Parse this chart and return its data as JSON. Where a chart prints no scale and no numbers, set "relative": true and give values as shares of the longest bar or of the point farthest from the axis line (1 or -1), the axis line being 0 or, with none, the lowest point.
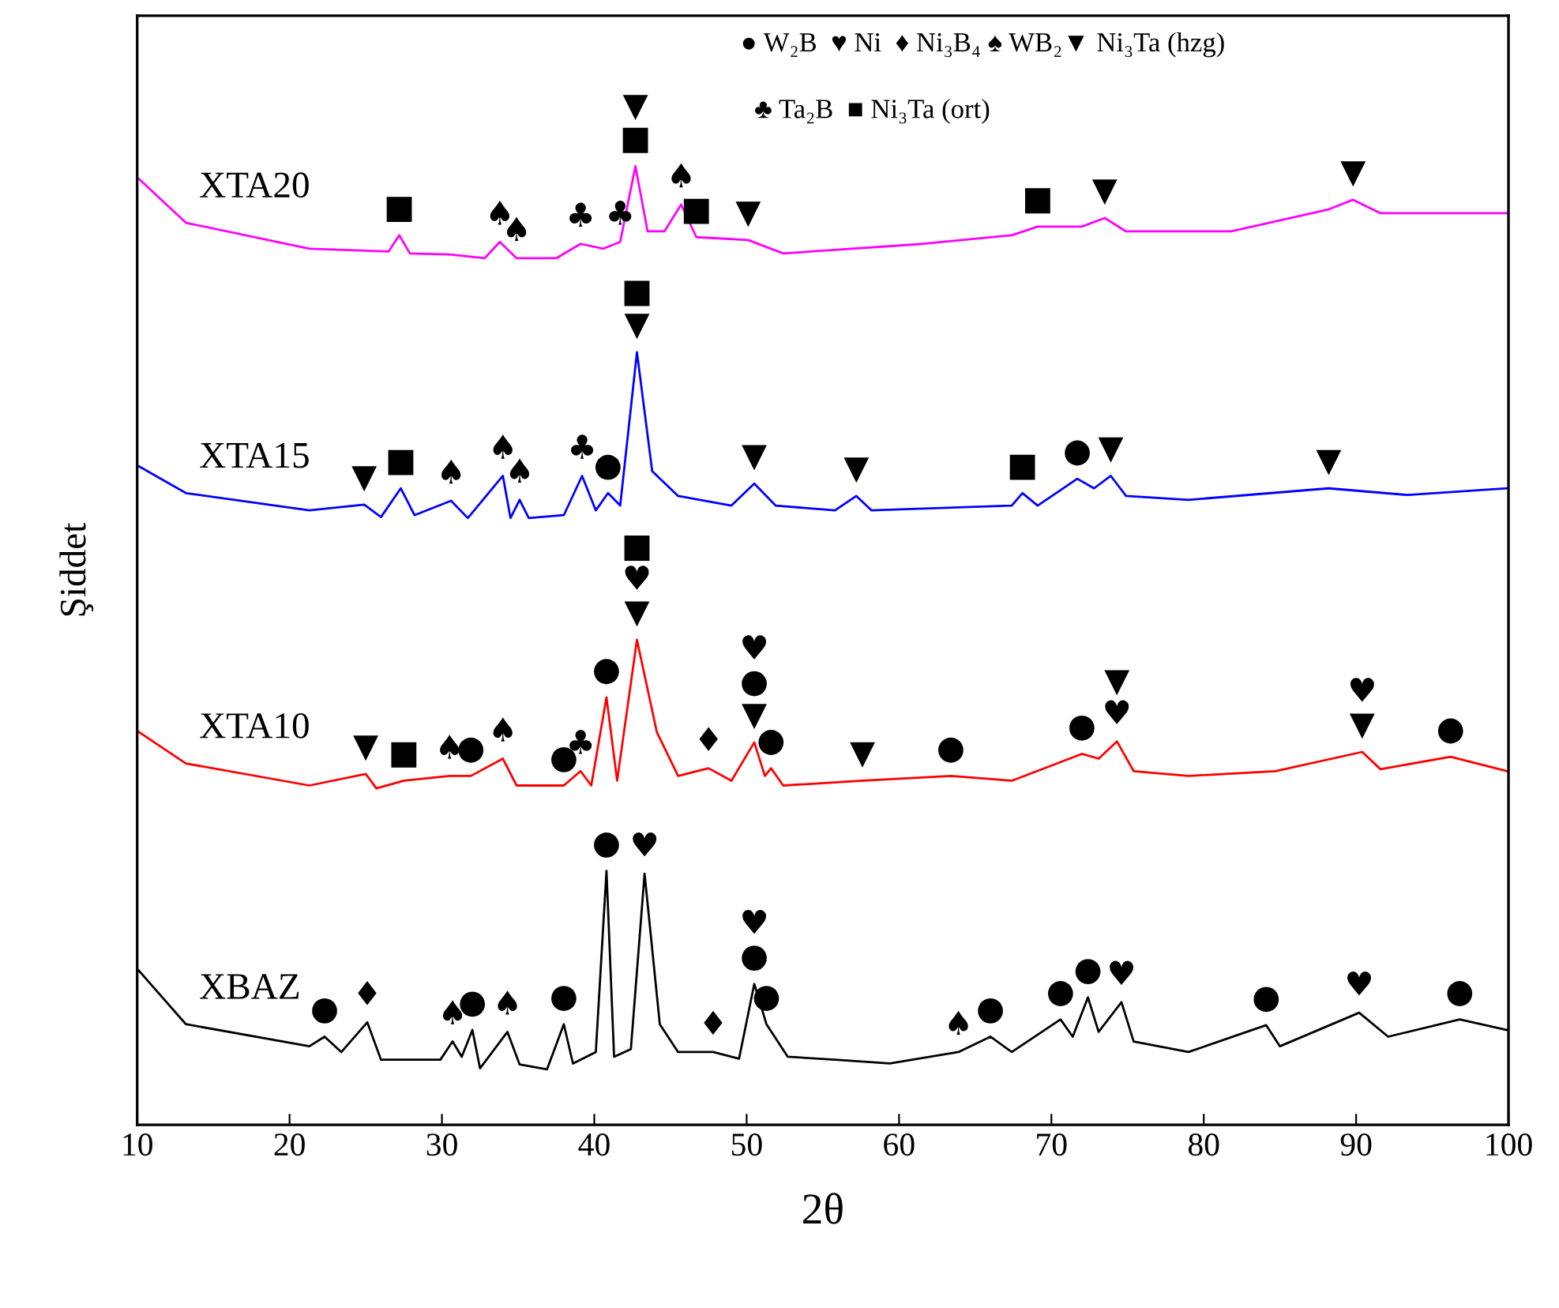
{
  "chart_data": {
    "type": "line",
    "relative": true,
    "xlabel": "2θ",
    "ylabel": "Şiddet",
    "xlim": [
      10,
      100
    ],
    "xticks": [
      10,
      20,
      30,
      40,
      50,
      60,
      70,
      80,
      90,
      100
    ],
    "grid": false,
    "tick_labels": "x",
    "marker": "none",
    "line_style": "solid",
    "series": [
      {
        "name": "XTA20",
        "color": "#ff00ff",
        "x": [
          10.1,
          13.2,
          21.3,
          26.5,
          27.2,
          27.9,
          30.5,
          32.8,
          33.8,
          34.9,
          37.5,
          39.1,
          40.6,
          41.7,
          42.7,
          43.5,
          44.6,
          45.7,
          46.7,
          50.1,
          52.4,
          61.6,
          67.4,
          69.1,
          72.0,
          73.5,
          74.9,
          81.8,
          88.2,
          89.8,
          91.6,
          99.9
        ],
        "values": [
          0.987,
          0.941,
          0.914,
          0.911,
          0.928,
          0.909,
          0.908,
          0.904,
          0.921,
          0.904,
          0.904,
          0.919,
          0.914,
          0.921,
          1.0,
          0.932,
          0.932,
          0.96,
          0.926,
          0.923,
          0.909,
          0.919,
          0.928,
          0.937,
          0.937,
          0.946,
          0.932,
          0.932,
          0.955,
          0.965,
          0.951,
          0.951
        ]
      },
      {
        "name": "XTA15",
        "color": "#0000ff",
        "x": [
          10.1,
          13.2,
          21.3,
          24.9,
          26.0,
          27.3,
          28.2,
          30.6,
          31.7,
          34.0,
          34.5,
          35.1,
          35.7,
          38.0,
          39.2,
          40.1,
          40.9,
          41.7,
          42.8,
          43.8,
          45.5,
          49.0,
          50.5,
          51.9,
          55.8,
          57.2,
          58.2,
          67.4,
          68.1,
          69.1,
          71.7,
          72.8,
          73.9,
          74.9,
          79.0,
          88.2,
          93.4,
          99.9
        ],
        "values": [
          0.687,
          0.659,
          0.641,
          0.647,
          0.634,
          0.664,
          0.636,
          0.651,
          0.633,
          0.677,
          0.633,
          0.652,
          0.633,
          0.636,
          0.677,
          0.641,
          0.659,
          0.646,
          0.806,
          0.682,
          0.656,
          0.646,
          0.669,
          0.646,
          0.641,
          0.656,
          0.641,
          0.646,
          0.659,
          0.646,
          0.674,
          0.664,
          0.677,
          0.656,
          0.652,
          0.664,
          0.657,
          0.664
        ]
      },
      {
        "name": "XTA10",
        "color": "#ff0000",
        "x": [
          10.1,
          13.2,
          21.3,
          25.0,
          25.7,
          27.5,
          30.5,
          31.9,
          34.0,
          34.9,
          38.0,
          39.1,
          39.8,
          40.8,
          41.5,
          42.8,
          44.1,
          45.5,
          47.5,
          49.0,
          50.5,
          51.2,
          51.6,
          52.4,
          57.6,
          63.4,
          67.4,
          72.0,
          73.1,
          74.3,
          75.4,
          79.0,
          84.7,
          90.4,
          91.6,
          96.2,
          99.9
        ],
        "values": [
          0.41,
          0.377,
          0.354,
          0.366,
          0.351,
          0.359,
          0.364,
          0.364,
          0.382,
          0.354,
          0.354,
          0.369,
          0.354,
          0.446,
          0.359,
          0.506,
          0.41,
          0.364,
          0.372,
          0.359,
          0.399,
          0.364,
          0.372,
          0.354,
          0.359,
          0.364,
          0.359,
          0.387,
          0.382,
          0.4,
          0.369,
          0.364,
          0.369,
          0.389,
          0.371,
          0.384,
          0.369
        ]
      },
      {
        "name": "XBAZ",
        "color": "#000000",
        "x": [
          10.1,
          13.2,
          21.3,
          22.3,
          23.4,
          25.1,
          26.0,
          29.9,
          30.7,
          31.3,
          32.0,
          32.5,
          34.3,
          35.1,
          36.9,
          38.0,
          38.6,
          40.1,
          40.8,
          41.3,
          42.4,
          43.3,
          44.3,
          45.5,
          47.8,
          49.5,
          50.5,
          51.3,
          52.7,
          55.8,
          59.4,
          63.9,
          66.0,
          67.4,
          70.6,
          71.4,
          72.4,
          73.1,
          74.6,
          75.4,
          79.0,
          84.1,
          85.0,
          90.2,
          92.1,
          96.8,
          99.9
        ],
        "values": [
          0.161,
          0.105,
          0.082,
          0.092,
          0.076,
          0.107,
          0.068,
          0.068,
          0.087,
          0.071,
          0.099,
          0.059,
          0.097,
          0.063,
          0.058,
          0.105,
          0.064,
          0.076,
          0.265,
          0.071,
          0.079,
          0.262,
          0.105,
          0.076,
          0.076,
          0.069,
          0.147,
          0.105,
          0.071,
          0.068,
          0.064,
          0.076,
          0.092,
          0.076,
          0.11,
          0.092,
          0.133,
          0.097,
          0.128,
          0.087,
          0.076,
          0.104,
          0.082,
          0.117,
          0.092,
          0.11,
          0.099
        ]
      }
    ],
    "annotations": [
      "● W₂B  ♥ Ni  ♦ Ni₃B₄ ♠ WB₂▼ Ni₃Ta (hzg)",
      "♣ Ta₂B  ■ Ni₃Ta (ort)",
      {
        "text": "■",
        "x": 27.2,
        "y": 0.928
      },
      {
        "text": "♠",
        "x": 33.8,
        "y": 0.921
      },
      {
        "text": "♠",
        "x": 34.9,
        "y": 0.904
      },
      {
        "text": "♣",
        "x": 39.1,
        "y": 0.919
      },
      {
        "text": "♣",
        "x": 41.7,
        "y": 0.921
      },
      {
        "text": "■",
        "x": 42.7,
        "y": 1.0
      },
      {
        "text": "▼",
        "x": 42.7,
        "y": 1.0
      },
      {
        "text": "♠",
        "x": 45.7,
        "y": 0.96
      },
      {
        "text": "■",
        "x": 46.7,
        "y": 0.926
      },
      {
        "text": "▼",
        "x": 50.1,
        "y": 0.923
      },
      {
        "text": "■",
        "x": 69.1,
        "y": 0.937
      },
      {
        "text": "▼",
        "x": 73.5,
        "y": 0.946
      },
      {
        "text": "▼",
        "x": 89.8,
        "y": 0.965
      },
      {
        "text": "▼",
        "x": 24.9,
        "y": 0.647
      },
      {
        "text": "■",
        "x": 27.3,
        "y": 0.664
      },
      {
        "text": "♠",
        "x": 30.6,
        "y": 0.651
      },
      {
        "text": "♠",
        "x": 34.0,
        "y": 0.677
      },
      {
        "text": "♠",
        "x": 35.1,
        "y": 0.652
      },
      {
        "text": "♣",
        "x": 39.2,
        "y": 0.677
      },
      {
        "text": "●",
        "x": 40.9,
        "y": 0.659
      },
      {
        "text": "▼",
        "x": 42.8,
        "y": 0.806
      },
      {
        "text": "■",
        "x": 42.8,
        "y": 0.806
      },
      {
        "text": "▼",
        "x": 50.5,
        "y": 0.669
      },
      {
        "text": "▼",
        "x": 57.2,
        "y": 0.656
      },
      {
        "text": "■",
        "x": 68.1,
        "y": 0.659
      },
      {
        "text": "●",
        "x": 71.7,
        "y": 0.674
      },
      {
        "text": "▼",
        "x": 73.9,
        "y": 0.677
      },
      {
        "text": "▼",
        "x": 88.2,
        "y": 0.664
      },
      {
        "text": "▼",
        "x": 25.0,
        "y": 0.366
      },
      {
        "text": "■",
        "x": 27.5,
        "y": 0.359
      },
      {
        "text": "♠",
        "x": 30.5,
        "y": 0.364
      },
      {
        "text": "●",
        "x": 31.9,
        "y": 0.364
      },
      {
        "text": "♠",
        "x": 34.0,
        "y": 0.382
      },
      {
        "text": "●",
        "x": 38.0,
        "y": 0.354
      },
      {
        "text": "♣",
        "x": 39.1,
        "y": 0.369
      },
      {
        "text": "●",
        "x": 40.8,
        "y": 0.446
      },
      {
        "text": "▼",
        "x": 42.8,
        "y": 0.506
      },
      {
        "text": "♥",
        "x": 42.8,
        "y": 0.506
      },
      {
        "text": "■",
        "x": 42.8,
        "y": 0.506
      },
      {
        "text": "♦",
        "x": 47.5,
        "y": 0.372
      },
      {
        "text": "▼",
        "x": 50.5,
        "y": 0.399
      },
      {
        "text": "●",
        "x": 50.5,
        "y": 0.399
      },
      {
        "text": "♥",
        "x": 50.5,
        "y": 0.399
      },
      {
        "text": "●",
        "x": 51.6,
        "y": 0.372
      },
      {
        "text": "▼",
        "x": 57.6,
        "y": 0.359
      },
      {
        "text": "●",
        "x": 63.4,
        "y": 0.364
      },
      {
        "text": "●",
        "x": 72.0,
        "y": 0.387
      },
      {
        "text": "♥",
        "x": 74.3,
        "y": 0.4
      },
      {
        "text": "▼",
        "x": 74.3,
        "y": 0.4
      },
      {
        "text": "▼",
        "x": 90.4,
        "y": 0.389
      },
      {
        "text": "♥",
        "x": 90.4,
        "y": 0.389
      },
      {
        "text": "●",
        "x": 96.2,
        "y": 0.384
      },
      {
        "text": "●",
        "x": 22.3,
        "y": 0.092
      },
      {
        "text": "♦",
        "x": 25.1,
        "y": 0.107
      },
      {
        "text": "♠",
        "x": 30.7,
        "y": 0.087
      },
      {
        "text": "●",
        "x": 32.0,
        "y": 0.099
      },
      {
        "text": "♠",
        "x": 34.3,
        "y": 0.097
      },
      {
        "text": "●",
        "x": 38.0,
        "y": 0.105
      },
      {
        "text": "●",
        "x": 40.8,
        "y": 0.265
      },
      {
        "text": "♥",
        "x": 43.3,
        "y": 0.262
      },
      {
        "text": "♦",
        "x": 47.8,
        "y": 0.076
      },
      {
        "text": "●",
        "x": 50.5,
        "y": 0.147
      },
      {
        "text": "♥",
        "x": 50.5,
        "y": 0.147
      },
      {
        "text": "●",
        "x": 51.3,
        "y": 0.105
      },
      {
        "text": "♠",
        "x": 63.9,
        "y": 0.076
      },
      {
        "text": "●",
        "x": 66.0,
        "y": 0.092
      },
      {
        "text": "●",
        "x": 70.6,
        "y": 0.11
      },
      {
        "text": "●",
        "x": 72.4,
        "y": 0.133
      },
      {
        "text": "♥",
        "x": 74.6,
        "y": 0.128
      },
      {
        "text": "●",
        "x": 84.1,
        "y": 0.104
      },
      {
        "text": "♥",
        "x": 90.2,
        "y": 0.117
      },
      {
        "text": "●",
        "x": 96.8,
        "y": 0.11
      }
    ]
  }
}
